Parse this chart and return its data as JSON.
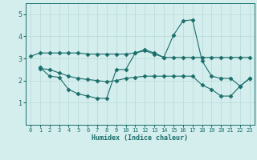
{
  "xlabel": "Humidex (Indice chaleur)",
  "ylabel": "",
  "bg_color": "#d4eded",
  "grid_color": "#b8d8d8",
  "line_color": "#1a6e6a",
  "xlim": [
    -0.5,
    23.5
  ],
  "ylim": [
    0,
    5.5
  ],
  "yticks": [
    1,
    2,
    3,
    4,
    5
  ],
  "xticks": [
    0,
    1,
    2,
    3,
    4,
    5,
    6,
    7,
    8,
    9,
    10,
    11,
    12,
    13,
    14,
    15,
    16,
    17,
    18,
    19,
    20,
    21,
    22,
    23
  ],
  "line1_x": [
    0,
    1,
    2,
    3,
    4,
    5,
    6,
    7,
    8,
    9,
    10,
    11,
    12,
    13,
    14,
    15,
    16,
    17,
    18,
    19,
    20,
    21,
    22,
    23
  ],
  "line1_y": [
    3.1,
    3.25,
    3.25,
    3.25,
    3.25,
    3.25,
    3.2,
    3.2,
    3.2,
    3.2,
    3.2,
    3.25,
    3.35,
    3.2,
    3.05,
    3.05,
    3.05,
    3.05,
    3.05,
    3.05,
    3.05,
    3.05,
    3.05,
    3.05
  ],
  "line2_x": [
    1,
    2,
    3,
    4,
    5,
    6,
    7,
    8,
    9,
    10,
    11,
    12,
    13,
    14,
    15,
    16,
    17,
    18,
    19,
    20,
    21,
    22,
    23
  ],
  "line2_y": [
    2.6,
    2.2,
    2.15,
    1.6,
    1.4,
    1.3,
    1.2,
    1.2,
    2.5,
    2.5,
    3.25,
    3.4,
    3.25,
    3.05,
    4.05,
    4.7,
    4.75,
    2.9,
    2.2,
    2.1,
    2.1,
    1.75,
    2.1
  ],
  "line3_x": [
    1,
    2,
    3,
    4,
    5,
    6,
    7,
    8,
    9,
    10,
    11,
    12,
    13,
    14,
    15,
    16,
    17,
    18,
    19,
    20,
    21,
    22,
    23
  ],
  "line3_y": [
    2.55,
    2.5,
    2.35,
    2.2,
    2.1,
    2.05,
    2.0,
    1.95,
    2.0,
    2.1,
    2.15,
    2.2,
    2.2,
    2.2,
    2.2,
    2.2,
    2.2,
    1.8,
    1.6,
    1.3,
    1.3,
    1.75,
    2.1
  ]
}
